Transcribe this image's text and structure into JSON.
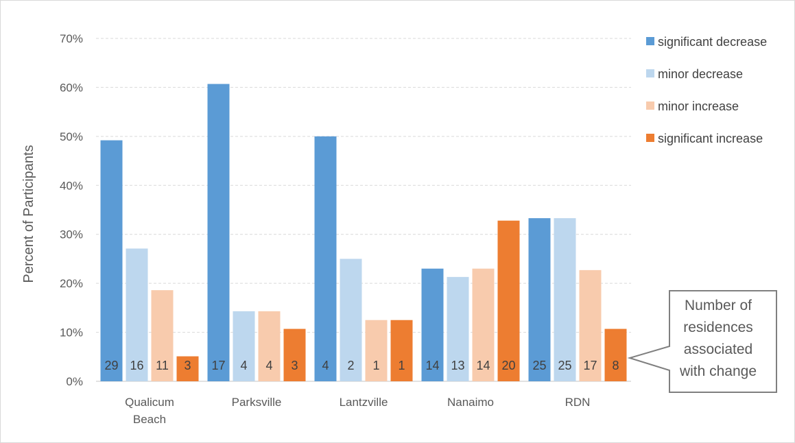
{
  "chart_data": {
    "type": "bar",
    "ylabel": "Percent of Participants",
    "ylim": [
      0,
      70
    ],
    "yticks": [
      "0%",
      "10%",
      "20%",
      "30%",
      "40%",
      "50%",
      "60%",
      "70%"
    ],
    "grid": true,
    "legend_position": "right",
    "categories": [
      [
        "Qualicum",
        "Beach"
      ],
      [
        "Parksville"
      ],
      [
        "Lantzville"
      ],
      [
        "Nanaimo"
      ],
      [
        "RDN"
      ]
    ],
    "series": [
      {
        "name": "significant decrease",
        "color": "#5b9bd5",
        "values": [
          49.2,
          60.7,
          50.0,
          23.0,
          33.3
        ],
        "counts": [
          "29",
          "17",
          "4",
          "14",
          "25"
        ]
      },
      {
        "name": "minor decrease",
        "color": "#bdd7ee",
        "values": [
          27.1,
          14.3,
          25.0,
          21.3,
          33.3
        ],
        "counts": [
          "16",
          "4",
          "2",
          "13",
          "25"
        ]
      },
      {
        "name": "minor increase",
        "color": "#f8cbad",
        "values": [
          18.6,
          14.3,
          12.5,
          23.0,
          22.7
        ],
        "counts": [
          "11",
          "4",
          "1",
          "14",
          "17"
        ]
      },
      {
        "name": "significant increase",
        "color": "#ed7d31",
        "values": [
          5.1,
          10.7,
          12.5,
          32.8,
          10.7
        ],
        "counts": [
          "3",
          "3",
          "1",
          "20",
          "8"
        ]
      }
    ],
    "annotation": [
      "Number of",
      "residences",
      "associated",
      "with change"
    ]
  }
}
